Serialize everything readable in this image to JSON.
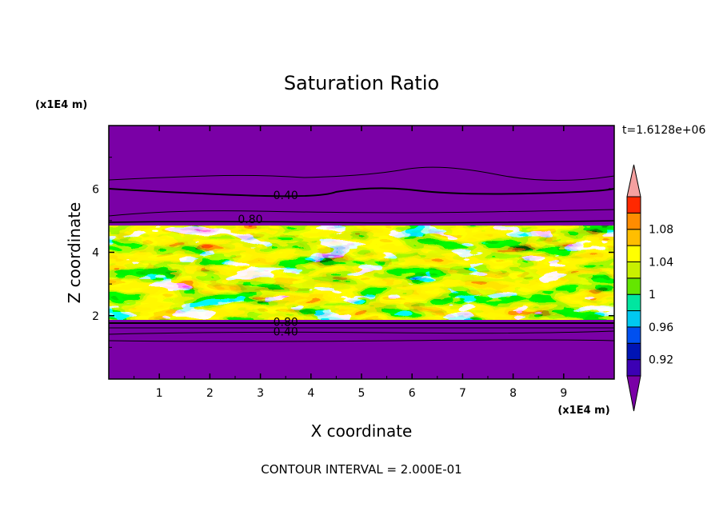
{
  "chart_data": {
    "type": "heatmap",
    "title": "Saturation Ratio",
    "xlabel": "X coordinate",
    "ylabel": "Z coordinate",
    "x_unit": "(x1E4 m)",
    "y_unit": "(x1E4 m)",
    "xlim": [
      0,
      10
    ],
    "ylim": [
      0,
      8
    ],
    "xticks": [
      "1",
      "2",
      "3",
      "4",
      "5",
      "6",
      "7",
      "8",
      "9"
    ],
    "yticks": [
      "2",
      "4",
      "6"
    ],
    "time_label": "t=1.6128e+06",
    "footer": "CONTOUR INTERVAL = 2.000E-01",
    "contour_labels": [
      {
        "text": "0.40",
        "x": 3.5,
        "z": 5.8
      },
      {
        "text": "0.80",
        "x": 2.8,
        "z": 5.05
      },
      {
        "text": "0.80",
        "x": 3.5,
        "z": 1.8
      },
      {
        "text": "0.40",
        "x": 3.5,
        "z": 1.5
      }
    ],
    "colorbar": {
      "labels": [
        "1.08",
        "1.04",
        "1",
        "0.96",
        "0.92"
      ],
      "levels": [
        0.92,
        0.94,
        0.96,
        0.98,
        1.0,
        1.02,
        1.04,
        1.06,
        1.08
      ],
      "colors": [
        "#7a00a6",
        "#3c00b4",
        "#0014b4",
        "#0050f0",
        "#00c8f0",
        "#00e6a0",
        "#64e600",
        "#c8f000",
        "#ffff00",
        "#ffbe00",
        "#ff8c00",
        "#ff2800",
        "#f5a0a0"
      ]
    }
  }
}
